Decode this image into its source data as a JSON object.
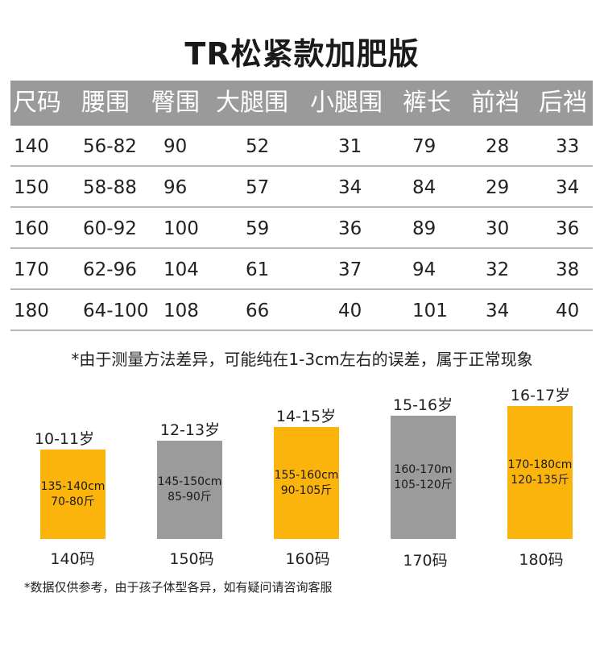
{
  "title": "TR松紧款加肥版",
  "table": {
    "headers": [
      "尺码",
      "腰围",
      "臀围",
      "大腿围",
      "小腿围",
      "裤长",
      "前裆",
      "后裆"
    ],
    "rows": [
      [
        "140",
        "56-82",
        "90",
        "52",
        "31",
        "79",
        "28",
        "33"
      ],
      [
        "150",
        "58-88",
        "96",
        "57",
        "34",
        "84",
        "29",
        "34"
      ],
      [
        "160",
        "60-92",
        "100",
        "59",
        "36",
        "89",
        "30",
        "36"
      ],
      [
        "170",
        "62-96",
        "104",
        "61",
        "37",
        "94",
        "32",
        "38"
      ],
      [
        "180",
        "64-100",
        "108",
        "66",
        "40",
        "101",
        "34",
        "40"
      ]
    ]
  },
  "note_measure": "*由于测量方法差异，可能纯在1-3cm左右的误差，属于正常现象",
  "size_blocks": [
    {
      "age": "10-11岁",
      "height": "135-140cm",
      "weight": "70-80斤",
      "size": "140码",
      "color": "#fbb40c"
    },
    {
      "age": "12-13岁",
      "height": "145-150cm",
      "weight": "85-90斤",
      "size": "150码",
      "color": "#9b9b9b"
    },
    {
      "age": "14-15岁",
      "height": "155-160cm",
      "weight": "90-105斤",
      "size": "160码",
      "color": "#fbb40c"
    },
    {
      "age": "15-16岁",
      "height": "160-170m",
      "weight": "105-120斤",
      "size": "170码",
      "color": "#9b9b9b"
    },
    {
      "age": "16-17岁",
      "height": "170-180cm",
      "weight": "120-135斤",
      "size": "180码",
      "color": "#fbb40c"
    }
  ],
  "note_data": "*数据仅供参考，由于孩子体型各异，如有疑问请咨询客服"
}
